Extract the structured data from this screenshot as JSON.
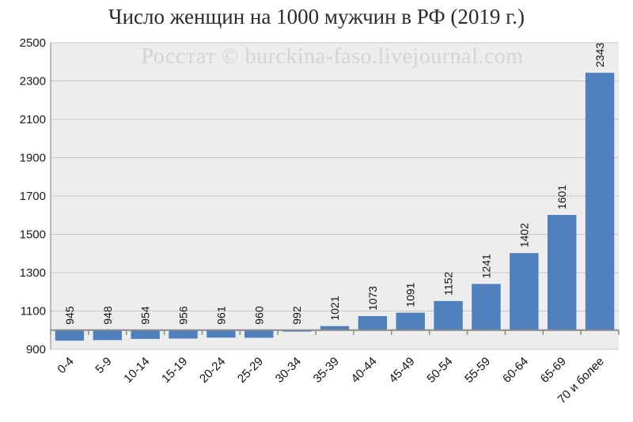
{
  "chart_data": {
    "type": "bar",
    "title": "Число женщин на 1000 мужчин в РФ (2019 г.)",
    "watermark": "Росстат © burckina-faso.livejournal.com",
    "xlabel": "",
    "ylabel": "",
    "baseline": 1000,
    "ylim": [
      900,
      2500
    ],
    "yticks": [
      900,
      1100,
      1300,
      1500,
      1700,
      1900,
      2100,
      2300,
      2500
    ],
    "grid": true,
    "categories": [
      "0-4",
      "5-9",
      "10-14",
      "15-19",
      "20-24",
      "25-29",
      "30-34",
      "35-39",
      "40-44",
      "45-49",
      "50-54",
      "55-59",
      "60-64",
      "65-69",
      "70 и более"
    ],
    "values": [
      945,
      948,
      954,
      956,
      961,
      960,
      992,
      1021,
      1073,
      1091,
      1152,
      1241,
      1402,
      1601,
      2343
    ],
    "colors": {
      "bar": "#4f7fbd",
      "plot_bg": "#ededed",
      "grid": "#c8c8c8",
      "axis": "#7f7f7f"
    }
  }
}
